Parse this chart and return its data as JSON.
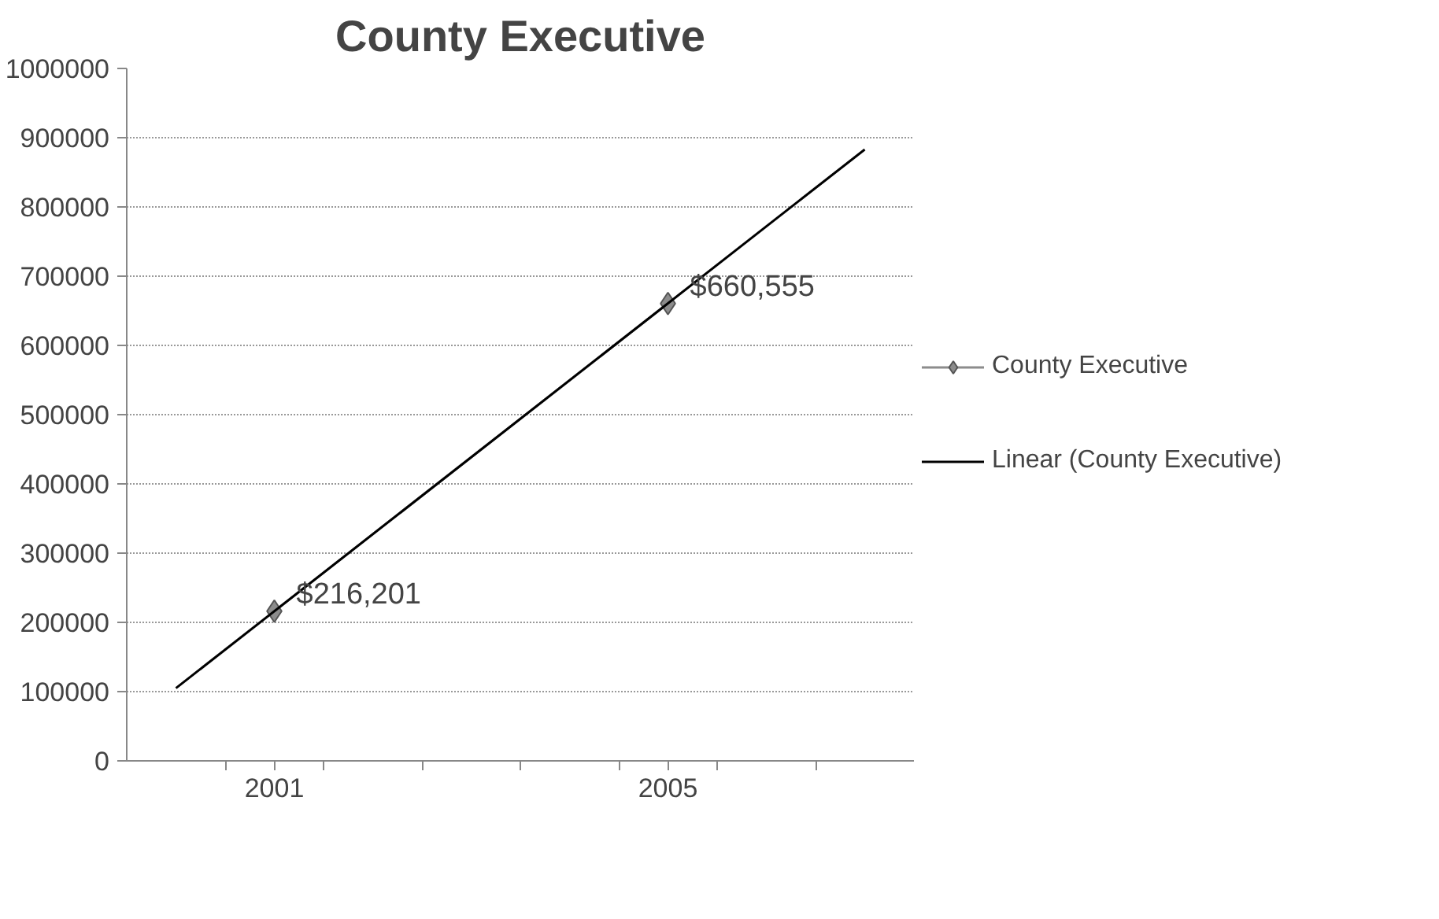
{
  "chart_data": {
    "type": "line",
    "title": "County Executive",
    "x": [
      2001,
      2005
    ],
    "xlim": [
      1999.5,
      2007.5
    ],
    "xticks": [
      {
        "value": 2000.5,
        "label": null
      },
      {
        "value": 2001,
        "label": "2001"
      },
      {
        "value": 2001.5,
        "label": null
      },
      {
        "value": 2002.5,
        "label": null
      },
      {
        "value": 2003.5,
        "label": null
      },
      {
        "value": 2004.5,
        "label": null
      },
      {
        "value": 2005,
        "label": "2005"
      },
      {
        "value": 2005.5,
        "label": null
      },
      {
        "value": 2006.5,
        "label": null
      }
    ],
    "ylim": [
      0,
      1000000
    ],
    "yticks": [
      0,
      100000,
      200000,
      300000,
      400000,
      500000,
      600000,
      700000,
      800000,
      900000,
      1000000
    ],
    "series": [
      {
        "name": "County Executive",
        "color": "#8c8c8c",
        "values": [
          216201,
          660555
        ],
        "value_labels": [
          "$216,201",
          "$660,555"
        ],
        "marker": "diamond"
      },
      {
        "name": "Linear (County Executive)",
        "type": "line",
        "color": "#000000",
        "x": [
          2000,
          2007
        ],
        "values": [
          105000,
          883000
        ],
        "marker": "none"
      }
    ],
    "grid": "y",
    "legend": "right",
    "line_style": "solid"
  }
}
